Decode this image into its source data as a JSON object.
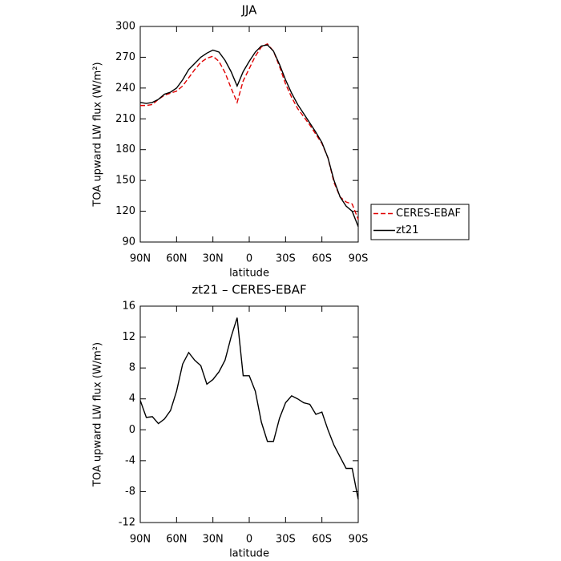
{
  "chart_data": [
    {
      "type": "line",
      "title": "JJA",
      "xlabel": "latitude",
      "ylabel": "TOA upward LW flux (W/m²)",
      "x": [
        90,
        85,
        80,
        75,
        70,
        65,
        60,
        55,
        50,
        45,
        40,
        35,
        30,
        25,
        20,
        15,
        10,
        5,
        0,
        -5,
        -10,
        -15,
        -20,
        -25,
        -30,
        -35,
        -40,
        -45,
        -50,
        -55,
        -60,
        -65,
        -70,
        -75,
        -80,
        -85,
        -90
      ],
      "series": [
        {
          "name": "CERES-EBAF",
          "color": "#e00000",
          "line_style": "dashed",
          "values": [
            223,
            223,
            224,
            229,
            233,
            235,
            237,
            242,
            250,
            258,
            265,
            269,
            271,
            266,
            255,
            240,
            226,
            247,
            259,
            271,
            280,
            283,
            276,
            261,
            244,
            231,
            220,
            212,
            204,
            195,
            186,
            172,
            148,
            134,
            129,
            127,
            112
          ]
        },
        {
          "name": "zt21",
          "color": "#000000",
          "line_style": "solid",
          "values": [
            226,
            225,
            226,
            229,
            234,
            236,
            240,
            248,
            258,
            264,
            270,
            274,
            277,
            275,
            267,
            256,
            242,
            256,
            266,
            275,
            281,
            282,
            276,
            263,
            248,
            235,
            224,
            215,
            206,
            197,
            187,
            172,
            150,
            134,
            125,
            120,
            105
          ]
        }
      ],
      "xlim": [
        90,
        -90
      ],
      "xticks": [
        {
          "value": 90,
          "label": "90N"
        },
        {
          "value": 60,
          "label": "60N"
        },
        {
          "value": 30,
          "label": "30N"
        },
        0,
        {
          "value": -30,
          "label": "30S"
        },
        {
          "value": -60,
          "label": "60S"
        },
        {
          "value": -90,
          "label": "90S"
        }
      ],
      "ylim": [
        90,
        300
      ],
      "yticks": [
        90,
        120,
        150,
        180,
        210,
        240,
        270,
        300
      ],
      "legend": "outside-right"
    },
    {
      "type": "line",
      "title": "zt21 – CERES-EBAF",
      "xlabel": "latitude",
      "ylabel": "TOA upward LW flux (W/m²)",
      "x": [
        90,
        85,
        80,
        75,
        70,
        65,
        60,
        55,
        50,
        45,
        40,
        35,
        30,
        25,
        20,
        15,
        10,
        5,
        0,
        -5,
        -10,
        -15,
        -20,
        -25,
        -30,
        -35,
        -40,
        -45,
        -50,
        -55,
        -60,
        -65,
        -70,
        -75,
        -80,
        -85,
        -90
      ],
      "color": "#000000",
      "values": [
        3.8,
        1.6,
        1.7,
        0.8,
        1.4,
        2.5,
        5,
        8.5,
        10,
        9,
        8.3,
        5.9,
        6.5,
        7.5,
        9,
        12,
        14.5,
        7,
        7,
        5,
        1,
        -1.5,
        -1.5,
        1.5,
        3.5,
        4.4,
        4,
        3.5,
        3.3,
        2,
        2.3,
        0,
        -2,
        -3.5,
        -5,
        -5,
        -9
      ],
      "xlim": [
        90,
        -90
      ],
      "xticks": [
        {
          "value": 90,
          "label": "90N"
        },
        {
          "value": 60,
          "label": "60N"
        },
        {
          "value": 30,
          "label": "30N"
        },
        0,
        {
          "value": -30,
          "label": "30S"
        },
        {
          "value": -60,
          "label": "60S"
        },
        {
          "value": -90,
          "label": "90S"
        }
      ],
      "ylim": [
        -12,
        16
      ],
      "yticks": [
        -12,
        -8,
        -4,
        0,
        4,
        8,
        12,
        16
      ]
    }
  ]
}
